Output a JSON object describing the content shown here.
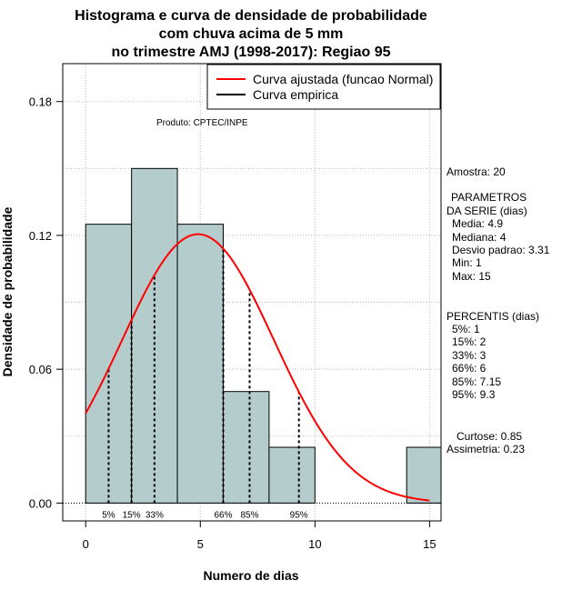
{
  "chart_data": {
    "type": "bar",
    "title_lines": [
      "Histograma e curva de densidade de probabilidade",
      "com chuva acima de 5 mm",
      "no trimestre AMJ (1998-2017): Regiao 95"
    ],
    "xlabel": "Numero de dias",
    "ylabel": "Densidade de probabilidade",
    "xlim": [
      -1,
      15.5
    ],
    "ylim": [
      -0.008,
      0.197
    ],
    "x_ticks": [
      0,
      5,
      10,
      15
    ],
    "y_ticks": [
      0.0,
      0.06,
      0.12,
      0.18
    ],
    "y_tick_labels": [
      "0.00",
      "0.06",
      "0.12",
      "0.18"
    ],
    "grid": true,
    "bins": [
      {
        "from": 0,
        "to": 2,
        "density": 0.125
      },
      {
        "from": 2,
        "to": 4,
        "density": 0.15
      },
      {
        "from": 4,
        "to": 6,
        "density": 0.125
      },
      {
        "from": 6,
        "to": 8,
        "density": 0.05
      },
      {
        "from": 8,
        "to": 10,
        "density": 0.025
      },
      {
        "from": 10,
        "to": 12,
        "density": 0.0
      },
      {
        "from": 12,
        "to": 14,
        "density": 0.0
      },
      {
        "from": 14,
        "to": 16,
        "density": 0.025
      }
    ],
    "normal_fit": {
      "mean": 4.9,
      "sd": 3.31,
      "x_range": [
        0,
        15
      ]
    },
    "percentiles": [
      {
        "label": "5%",
        "x": 1
      },
      {
        "label": "15%",
        "x": 2
      },
      {
        "label": "33%",
        "x": 3
      },
      {
        "label": "66%",
        "x": 6
      },
      {
        "label": "85%",
        "x": 7.15
      },
      {
        "label": "95%",
        "x": 9.3
      }
    ],
    "legend": {
      "position": "top-right",
      "entries": [
        {
          "label": "Curva ajustada (funcao Normal)",
          "color": "#ff0000"
        },
        {
          "label": "Curva empirica",
          "color": "#000000"
        }
      ]
    },
    "product_label": "Produto: CPTEC/INPE",
    "colors": {
      "bar_fill": "#b4cccc",
      "fit_curve": "#ff0000",
      "grid": "#bbbbbb"
    }
  },
  "sidebar": {
    "sample": "Amostra: 20",
    "params_title_1": "PARAMETROS",
    "params_title_2": "DA SERIE (dias)",
    "params": [
      "Media: 4.9",
      "Mediana: 4",
      "Desvio padrao: 3.31",
      "Min: 1",
      "Max: 15"
    ],
    "percentis_title": "PERCENTIS (dias)",
    "percentis": [
      "5%: 1",
      "15%: 2",
      "33%: 3",
      "66%: 6",
      "85%: 7.15",
      "95%: 9.3"
    ],
    "curtose": "Curtose: 0.85",
    "assimetria": "Assimetria: 0.23"
  }
}
